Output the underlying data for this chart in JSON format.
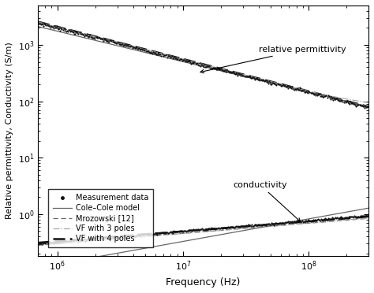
{
  "xlabel": "Frequency (Hz)",
  "ylabel": "Relative permittivity, Conductivity (S/m)",
  "xlim": [
    700000.0,
    300000000.0
  ],
  "ylim": [
    0.18,
    5000
  ],
  "legend_labels": [
    "Measurement data",
    "Cole–Cole model",
    "Mrozowski [12]",
    "VF with 3 poles",
    "VF with 4 poles"
  ],
  "annotation_permittivity": "relative permittivity",
  "annotation_conductivity": "conductivity",
  "background_color": "#ffffff"
}
